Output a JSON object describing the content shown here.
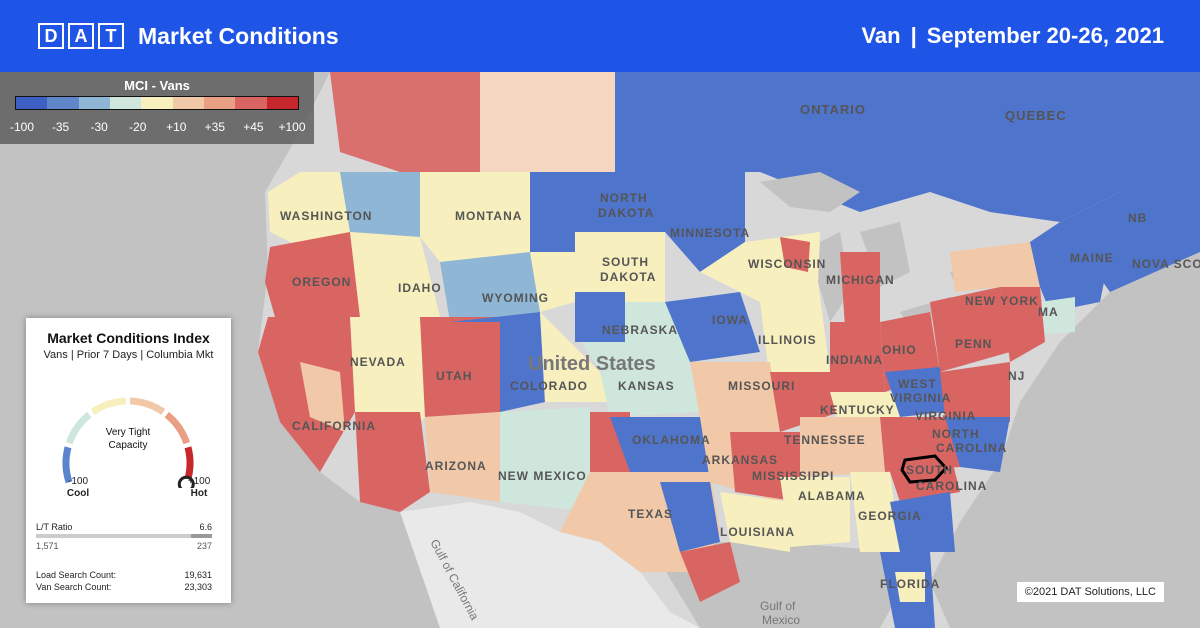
{
  "header": {
    "logo_letters": [
      "D",
      "A",
      "T"
    ],
    "title": "Market Conditions",
    "equipment": "Van",
    "separator": "|",
    "date_range": "September 20-26, 2021"
  },
  "legend": {
    "title": "MCI - Vans",
    "colors": [
      "#3e5fc4",
      "#5f86c9",
      "#8fb6d4",
      "#cfe6dc",
      "#f7efbd",
      "#f1c9a9",
      "#e89f84",
      "#d96563",
      "#c6272d"
    ],
    "ticks": [
      "-100",
      "-35",
      "-30",
      "-20",
      "+10",
      "+35",
      "+45",
      "+100"
    ]
  },
  "card": {
    "title": "Market Conditions Index",
    "subtitle": "Vans | Prior 7 Days | Columbia Mkt",
    "gauge_status_line1": "Very Tight",
    "gauge_status_line2": "Capacity",
    "gauge_value": 100,
    "min_value": "-100",
    "min_label": "Cool",
    "max_value": "+100",
    "max_label": "Hot",
    "lt_ratio_label": "L/T Ratio",
    "lt_ratio_value": "6.6",
    "loads_value": "1,571",
    "trucks_value": "237",
    "load_search_label": "Load Search Count:",
    "load_search_value": "19,631",
    "van_search_label": "Van Search Count:",
    "van_search_value": "23,303"
  },
  "map": {
    "labels": {
      "ontario": "ONTARIO",
      "quebec": "QUEBEC",
      "washington": "WASHINGTON",
      "montana": "MONTANA",
      "north_dakota_1": "NORTH",
      "north_dakota_2": "DAKOTA",
      "minnesota": "MINNESOTA",
      "south_dakota_1": "SOUTH",
      "south_dakota_2": "DAKOTA",
      "wisconsin": "WISCONSIN",
      "michigan": "MICHIGAN",
      "oregon": "OREGON",
      "idaho": "IDAHO",
      "wyoming": "WYOMING",
      "nebraska": "NEBRASKA",
      "iowa": "IOWA",
      "illinois": "ILLINOIS",
      "indiana": "INDIANA",
      "ohio": "OHIO",
      "penn": "PENN",
      "new_york": "NEW YORK",
      "maine": "MAINE",
      "nova_scotia": "NOVA SCO",
      "nb": "NB",
      "ma": "MA",
      "nj": "NJ",
      "nevada": "NEVADA",
      "utah": "UTAH",
      "colorado": "COLORADO",
      "united_states": "United States",
      "kansas": "KANSAS",
      "missouri": "MISSOURI",
      "kentucky": "KENTUCKY",
      "west_virginia_1": "WEST",
      "west_virginia_2": "VIRGINIA",
      "virginia": "VIRGINIA",
      "california": "CALIFORNIA",
      "arizona": "ARIZONA",
      "new_mexico": "NEW MEXICO",
      "oklahoma": "OKLAHOMA",
      "tennessee": "TENNESSEE",
      "north_carolina_1": "NORTH",
      "north_carolina_2": "CAROLINA",
      "south_carolina": "SOUTH",
      "carolina_2": "CAROLINA",
      "arkansas": "ARKANSAS",
      "mississippi": "MISSISSIPPI",
      "alabama": "ALABAMA",
      "georgia": "GEORGIA",
      "texas": "TEXAS",
      "louisiana": "LOUISIANA",
      "florida": "FLORIDA",
      "gulf_of_mexico_1": "Gulf of",
      "gulf_of_mexico_2": "Mexico",
      "gulf_of_california": "Gulf of California"
    }
  },
  "copyright": "©2021 DAT Solutions, LLC"
}
